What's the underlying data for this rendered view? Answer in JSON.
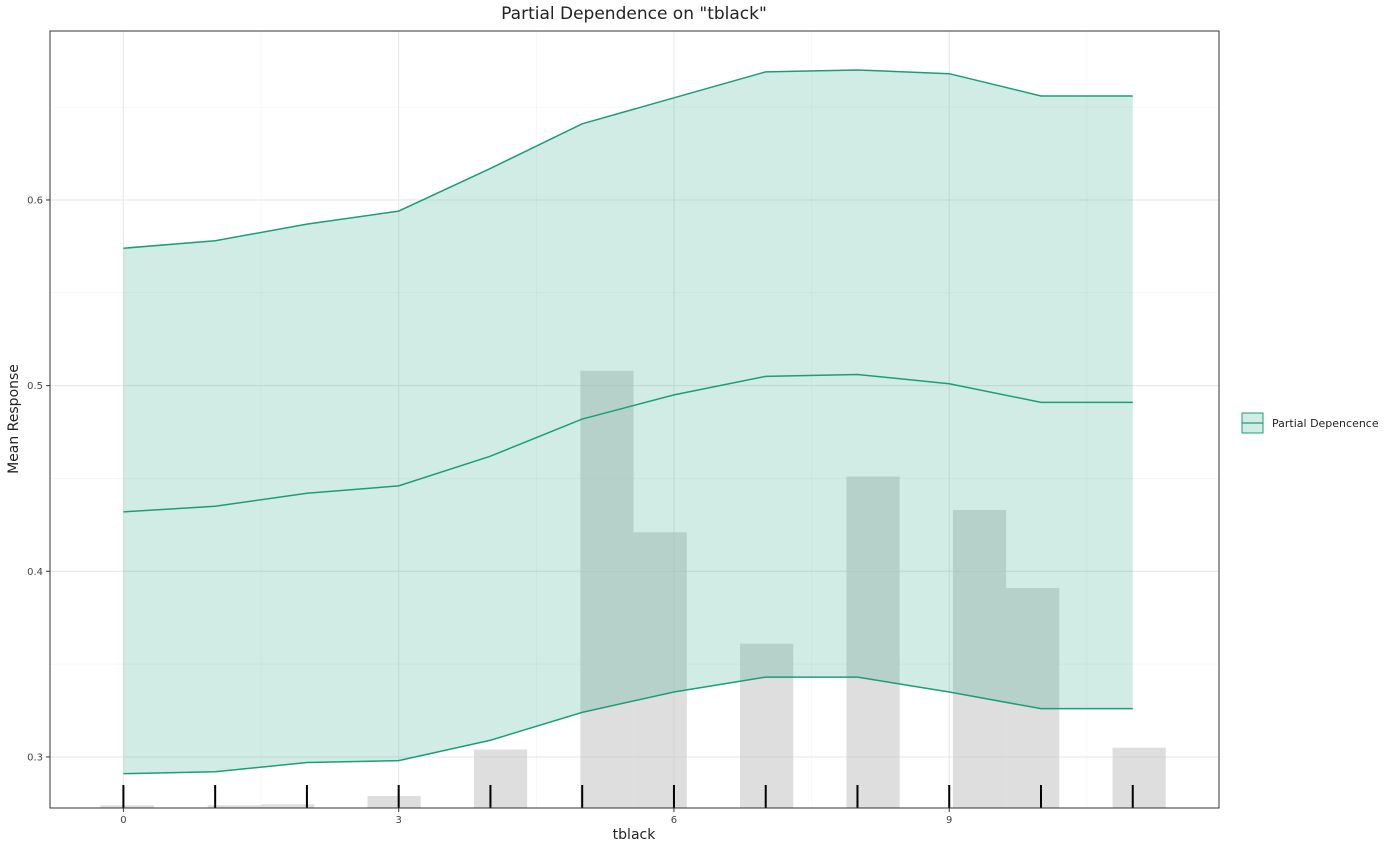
{
  "chart_data": {
    "type": "line",
    "title": "Partial Dependence on \"tblack\"",
    "xlabel": "tblack",
    "ylabel": "Mean Response",
    "xlim": [
      -0.8,
      11.94
    ],
    "ylim": [
      0.2725,
      0.691
    ],
    "x_ticks": [
      0,
      3,
      6,
      9
    ],
    "y_ticks": [
      0.3,
      0.4,
      0.5,
      0.6
    ],
    "x_minor_ticks": [
      1.5,
      4.5,
      7.5,
      10.5
    ],
    "y_minor_ticks": [
      0.35,
      0.45,
      0.55,
      0.65
    ],
    "grid": true,
    "legend_position": "right",
    "series": [
      {
        "name": "Partial Depencence",
        "color": "#1b9e77",
        "fill_color": "#1b9e77",
        "x": [
          0,
          1,
          2,
          3,
          4,
          5,
          6,
          7,
          8,
          9,
          10,
          11
        ],
        "mean": [
          0.432,
          0.435,
          0.442,
          0.446,
          0.462,
          0.482,
          0.495,
          0.505,
          0.506,
          0.501,
          0.491,
          0.491
        ],
        "upper": [
          0.574,
          0.578,
          0.587,
          0.594,
          0.617,
          0.641,
          0.655,
          0.669,
          0.67,
          0.668,
          0.656,
          0.656
        ],
        "lower": [
          0.291,
          0.292,
          0.297,
          0.298,
          0.309,
          0.324,
          0.335,
          0.343,
          0.343,
          0.335,
          0.326,
          0.326
        ]
      }
    ],
    "histogram": {
      "color": "#c8c8c8",
      "bars": [
        {
          "x0": -0.25,
          "x1": 0.33,
          "top": 0.274
        },
        {
          "x0": 0.92,
          "x1": 1.5,
          "top": 0.274
        },
        {
          "x0": 1.5,
          "x1": 2.08,
          "top": 0.2745
        },
        {
          "x0": 2.66,
          "x1": 3.24,
          "top": 0.279
        },
        {
          "x0": 3.82,
          "x1": 4.4,
          "top": 0.304
        },
        {
          "x0": 4.98,
          "x1": 5.56,
          "top": 0.508
        },
        {
          "x0": 5.56,
          "x1": 6.14,
          "top": 0.421
        },
        {
          "x0": 6.72,
          "x1": 7.3,
          "top": 0.361
        },
        {
          "x0": 7.88,
          "x1": 8.46,
          "top": 0.451
        },
        {
          "x0": 9.04,
          "x1": 9.62,
          "top": 0.433
        },
        {
          "x0": 9.62,
          "x1": 10.2,
          "top": 0.391
        },
        {
          "x0": 10.78,
          "x1": 11.36,
          "top": 0.305
        }
      ]
    },
    "rug_x": [
      0,
      1,
      2,
      3,
      4,
      5,
      6,
      7,
      8,
      9,
      10,
      11
    ]
  }
}
